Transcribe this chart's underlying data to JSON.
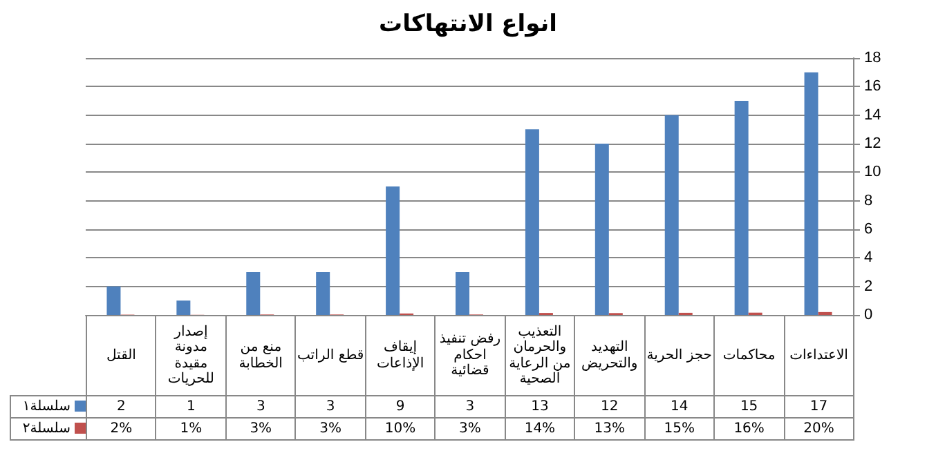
{
  "chart_data": {
    "type": "bar",
    "title": "انواع الانتهاكات",
    "categories": [
      "القتل",
      "إصدار مدونة مقيدة للحريات",
      "منع من الخطابة",
      "قطع الراتب",
      "إيقاف الإذاعات",
      "رفض تنفيذ احكام قضائية",
      "التعذيب والحرمان من الرعاية الصحية",
      "التهديد والتحريض",
      "حجز الحرية",
      "محاكمات",
      "الاعتداءات"
    ],
    "series": [
      {
        "name": "سلسلة١",
        "color": "#4f81bd",
        "values": [
          2,
          1,
          3,
          3,
          9,
          3,
          13,
          12,
          14,
          15,
          17
        ],
        "value_labels": [
          "2",
          "1",
          "3",
          "3",
          "9",
          "3",
          "13",
          "12",
          "14",
          "15",
          "17"
        ]
      },
      {
        "name": "سلسلة٢",
        "color": "#c0504d",
        "values": [
          0.02,
          0.01,
          0.03,
          0.03,
          0.1,
          0.03,
          0.14,
          0.13,
          0.15,
          0.16,
          0.2
        ],
        "value_labels": [
          "2%",
          "1%",
          "3%",
          "3%",
          "10%",
          "3%",
          "14%",
          "13%",
          "15%",
          "16%",
          "20%"
        ]
      }
    ],
    "ylim": [
      0,
      18
    ],
    "yticks": [
      0,
      2,
      4,
      6,
      8,
      10,
      12,
      14,
      16,
      18
    ],
    "grid": "y",
    "legend": "bottom left"
  }
}
